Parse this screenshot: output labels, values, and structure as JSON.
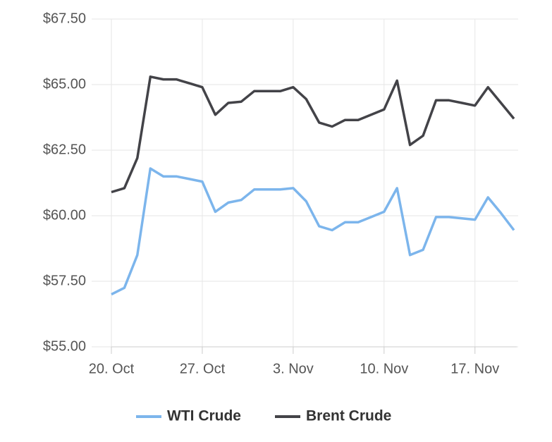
{
  "chart_data": {
    "type": "line",
    "x": [
      "Oct 20",
      "Oct 21",
      "Oct 22",
      "Oct 23",
      "Oct 24",
      "Oct 25",
      "Oct 26",
      "Oct 27",
      "Oct 28",
      "Oct 29",
      "Oct 30",
      "Oct 31",
      "Nov 1",
      "Nov 2",
      "Nov 3",
      "Nov 4",
      "Nov 5",
      "Nov 6",
      "Nov 7",
      "Nov 8",
      "Nov 9",
      "Nov 10",
      "Nov 11",
      "Nov 12",
      "Nov 13",
      "Nov 14",
      "Nov 15",
      "Nov 16",
      "Nov 17",
      "Nov 18",
      "Nov 19",
      "Nov 20"
    ],
    "series": [
      {
        "name": "WTI Crude",
        "color": "#7cb5ec",
        "values": [
          57.0,
          57.25,
          58.5,
          61.8,
          61.5,
          61.5,
          61.4,
          61.3,
          60.15,
          60.5,
          60.6,
          61.0,
          61.0,
          61.0,
          61.05,
          60.55,
          59.6,
          59.45,
          59.75,
          59.75,
          59.95,
          60.15,
          61.05,
          58.5,
          58.7,
          59.95,
          59.95,
          59.9,
          59.85,
          60.7,
          60.1,
          59.45
        ]
      },
      {
        "name": "Brent Crude",
        "color": "#434348",
        "values": [
          60.9,
          61.05,
          62.2,
          65.3,
          65.2,
          65.2,
          65.05,
          64.9,
          63.85,
          64.3,
          64.35,
          64.75,
          64.75,
          64.75,
          64.9,
          64.45,
          63.55,
          63.4,
          63.65,
          63.65,
          63.85,
          64.05,
          65.15,
          62.7,
          63.05,
          64.4,
          64.4,
          64.3,
          64.2,
          64.9,
          64.3,
          63.7
        ]
      }
    ],
    "xlim": [
      "Oct 20",
      "Nov 20"
    ],
    "xticks": [
      {
        "value": "Oct 20",
        "label": "20. Oct"
      },
      {
        "value": "Oct 27",
        "label": "27. Oct"
      },
      {
        "value": "Nov 3",
        "label": "3. Nov"
      },
      {
        "value": "Nov 10",
        "label": "10. Nov"
      },
      {
        "value": "Nov 17",
        "label": "17. Nov"
      }
    ],
    "ylim": [
      55,
      67.5
    ],
    "yticks": [
      {
        "value": 55,
        "label": "$55.00"
      },
      {
        "value": 57.5,
        "label": "$57.50"
      },
      {
        "value": 60,
        "label": "$60.00"
      },
      {
        "value": 62.5,
        "label": "$62.50"
      },
      {
        "value": 65,
        "label": "$65.00"
      },
      {
        "value": 67.5,
        "label": "$67.50"
      }
    ],
    "grid": true
  }
}
